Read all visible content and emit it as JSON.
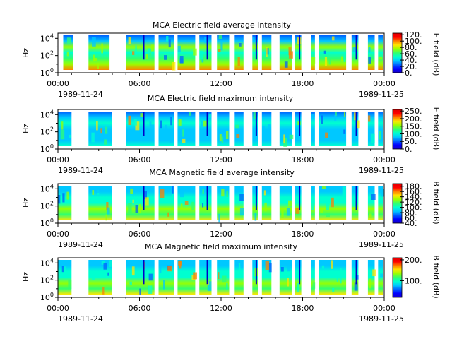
{
  "colors": {
    "colorbar_stops": [
      "#1a00c8",
      "#0000ff",
      "#0060ff",
      "#00c8ff",
      "#00ffd0",
      "#30ff70",
      "#9aff00",
      "#ffe600",
      "#ff8000",
      "#ff0000",
      "#e00000"
    ],
    "spectrogram_palette": [
      "#00c8ff",
      "#00ffd0",
      "#30ff70",
      "#9aff00",
      "#ffe600",
      "#ff8000",
      "#0060ff"
    ]
  },
  "chart_data": [
    {
      "type": "heatmap",
      "title": "MCA  Electric field average intensity",
      "ylabel": "Hz",
      "yticks": [
        "10^0",
        "10^2",
        "10^4"
      ],
      "xticks": [
        "00:00",
        "06:00",
        "12:00",
        "18:00",
        "00:00"
      ],
      "date_start": "1989-11-24",
      "date_end": "1989-11-25",
      "colorbar": {
        "label": "E field (dB)",
        "ticks": [
          "0.",
          "20.",
          "40.",
          "60.",
          "80.",
          "100.",
          "120."
        ],
        "range": [
          0,
          125
        ]
      },
      "segments": [
        [
          0.39,
          1.1
        ],
        [
          2.25,
          3.8
        ],
        [
          5.0,
          7.1
        ],
        [
          7.4,
          8.55
        ],
        [
          8.8,
          10.1
        ],
        [
          10.4,
          11.3
        ],
        [
          11.7,
          12.6
        ],
        [
          13.0,
          13.65
        ],
        [
          14.3,
          14.7
        ],
        [
          15.0,
          15.7
        ],
        [
          16.3,
          17.2
        ],
        [
          17.45,
          17.9
        ],
        [
          18.6,
          18.9
        ],
        [
          19.2,
          21.2
        ],
        [
          21.6,
          22.1
        ],
        [
          22.8,
          23.3
        ],
        [
          23.55,
          23.9
        ]
      ],
      "banding": "high_low"
    },
    {
      "type": "heatmap",
      "title": "MCA  Electric field maximum intensity",
      "ylabel": "Hz",
      "yticks": [
        "10^0",
        "10^2",
        "10^4"
      ],
      "xticks": [
        "00:00",
        "06:00",
        "12:00",
        "18:00",
        "00:00"
      ],
      "date_start": "1989-11-24",
      "date_end": "1989-11-25",
      "colorbar": {
        "label": "E field (dB)",
        "ticks": [
          "0.",
          "50.",
          "100.",
          "150.",
          "200.",
          "250."
        ],
        "range": [
          0,
          260
        ]
      },
      "segments": [
        [
          0.0,
          1.0
        ],
        [
          2.25,
          4.0
        ],
        [
          5.0,
          7.1
        ],
        [
          7.4,
          8.55
        ],
        [
          8.8,
          10.1
        ],
        [
          10.4,
          11.3
        ],
        [
          11.7,
          12.6
        ],
        [
          13.0,
          13.65
        ],
        [
          14.3,
          14.7
        ],
        [
          15.0,
          15.7
        ],
        [
          16.3,
          17.2
        ],
        [
          17.45,
          17.9
        ],
        [
          18.6,
          18.9
        ],
        [
          19.2,
          21.2
        ],
        [
          21.6,
          22.1
        ],
        [
          22.8,
          23.3
        ],
        [
          23.55,
          23.9
        ]
      ],
      "banding": "uniform_cyan"
    },
    {
      "type": "heatmap",
      "title": "MCA  Magnetic field average intensity",
      "ylabel": "Hz",
      "yticks": [
        "10^0",
        "10^2",
        "10^4"
      ],
      "xticks": [
        "00:00",
        "06:00",
        "12:00",
        "18:00",
        "00:00"
      ],
      "date_start": "1989-11-24",
      "date_end": "1989-11-25",
      "colorbar": {
        "label": "B field (dB)",
        "ticks": [
          "40.",
          "60.",
          "80.",
          "100.",
          "120.",
          "140.",
          "160.",
          "180."
        ],
        "range": [
          40,
          190
        ]
      },
      "segments": [
        [
          0.0,
          1.0
        ],
        [
          2.25,
          4.0
        ],
        [
          5.0,
          7.1
        ],
        [
          7.4,
          8.55
        ],
        [
          8.8,
          10.1
        ],
        [
          10.4,
          11.3
        ],
        [
          11.7,
          12.6
        ],
        [
          13.0,
          13.65
        ],
        [
          14.3,
          14.7
        ],
        [
          15.0,
          15.7
        ],
        [
          16.3,
          17.2
        ],
        [
          17.45,
          17.9
        ],
        [
          18.6,
          18.9
        ],
        [
          19.2,
          21.2
        ],
        [
          21.6,
          22.1
        ],
        [
          22.8,
          23.3
        ],
        [
          23.55,
          23.9
        ]
      ],
      "banding": "low_green"
    },
    {
      "type": "heatmap",
      "title": "MCA  Magnetic field maximum intensity",
      "ylabel": "Hz",
      "yticks": [
        "10^0",
        "10^2",
        "10^4"
      ],
      "xticks": [
        "00:00",
        "06:00",
        "12:00",
        "18:00",
        "00:00"
      ],
      "date_start": "1989-11-24",
      "date_end": "1989-11-25",
      "colorbar": {
        "label": "B field (dB)",
        "ticks": [
          "100.",
          "200."
        ],
        "range": [
          20,
          210
        ]
      },
      "segments": [
        [
          0.0,
          1.0
        ],
        [
          2.25,
          4.0
        ],
        [
          5.0,
          7.1
        ],
        [
          7.4,
          8.55
        ],
        [
          8.8,
          10.1
        ],
        [
          10.4,
          11.3
        ],
        [
          11.7,
          12.6
        ],
        [
          13.0,
          13.65
        ],
        [
          14.3,
          14.7
        ],
        [
          15.0,
          15.7
        ],
        [
          16.3,
          17.2
        ],
        [
          17.45,
          17.9
        ],
        [
          18.6,
          18.9
        ],
        [
          19.2,
          21.2
        ],
        [
          21.6,
          22.1
        ],
        [
          22.8,
          23.3
        ],
        [
          23.55,
          23.9
        ]
      ],
      "banding": "low_green"
    }
  ]
}
